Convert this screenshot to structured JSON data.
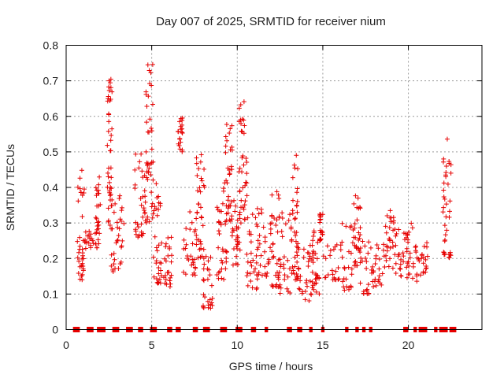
{
  "chart_data": {
    "type": "scatter",
    "title": "Day 007 of 2025, SRMTID for receiver nium",
    "xlabel": "GPS time / hours",
    "ylabel": "SRMTID / TECUs",
    "xlim": [
      0,
      24.3
    ],
    "ylim": [
      0,
      0.8
    ],
    "xticks": [
      0,
      5,
      10,
      15,
      20
    ],
    "xtick_labels": [
      "0",
      "5",
      "10",
      "15",
      "20"
    ],
    "yticks": [
      0,
      0.1,
      0.2,
      0.3,
      0.4,
      0.5,
      0.6,
      0.7,
      0.8
    ],
    "ytick_labels": [
      "0",
      "0.1",
      "0.2",
      "0.3",
      "0.4",
      "0.5",
      "0.6",
      "0.7",
      "0.8"
    ],
    "grid": true,
    "marker": "+",
    "color": "#e60000",
    "clusters": [
      {
        "x": [
          0.6,
          1.1
        ],
        "y": [
          0.14,
          0.45
        ]
      },
      {
        "x": [
          1.1,
          1.6
        ],
        "y": [
          0.22,
          0.28
        ]
      },
      {
        "x": [
          1.7,
          2.0
        ],
        "y": [
          0.23,
          0.43
        ]
      },
      {
        "x": [
          2.4,
          2.7
        ],
        "y": [
          0.28,
          0.71
        ]
      },
      {
        "x": [
          2.6,
          3.4
        ],
        "y": [
          0.16,
          0.4
        ]
      },
      {
        "x": [
          4.0,
          4.6
        ],
        "y": [
          0.26,
          0.5
        ]
      },
      {
        "x": [
          4.6,
          5.1
        ],
        "y": [
          0.3,
          0.77
        ]
      },
      {
        "x": [
          5.1,
          5.6
        ],
        "y": [
          0.13,
          0.42
        ]
      },
      {
        "x": [
          5.7,
          6.2
        ],
        "y": [
          0.12,
          0.26
        ]
      },
      {
        "x": [
          6.5,
          6.8
        ],
        "y": [
          0.5,
          0.6
        ]
      },
      {
        "x": [
          6.8,
          7.6
        ],
        "y": [
          0.15,
          0.34
        ]
      },
      {
        "x": [
          7.6,
          8.1
        ],
        "y": [
          0.2,
          0.52
        ]
      },
      {
        "x": [
          8.0,
          8.6
        ],
        "y": [
          0.06,
          0.23
        ]
      },
      {
        "x": [
          8.8,
          9.4
        ],
        "y": [
          0.14,
          0.43
        ]
      },
      {
        "x": [
          9.3,
          9.7
        ],
        "y": [
          0.3,
          0.59
        ]
      },
      {
        "x": [
          9.7,
          10.2
        ],
        "y": [
          0.18,
          0.37
        ]
      },
      {
        "x": [
          10.1,
          10.6
        ],
        "y": [
          0.3,
          0.66
        ]
      },
      {
        "x": [
          10.5,
          11.2
        ],
        "y": [
          0.11,
          0.36
        ]
      },
      {
        "x": [
          11.2,
          12.0
        ],
        "y": [
          0.15,
          0.35
        ]
      },
      {
        "x": [
          12.0,
          12.5
        ],
        "y": [
          0.12,
          0.4
        ]
      },
      {
        "x": [
          12.4,
          13.2
        ],
        "y": [
          0.1,
          0.33
        ]
      },
      {
        "x": [
          13.2,
          13.6
        ],
        "y": [
          0.14,
          0.51
        ]
      },
      {
        "x": [
          13.6,
          14.4
        ],
        "y": [
          0.08,
          0.26
        ]
      },
      {
        "x": [
          14.3,
          14.8
        ],
        "y": [
          0.1,
          0.3
        ]
      },
      {
        "x": [
          14.8,
          15.0
        ],
        "y": [
          0.25,
          0.34
        ]
      },
      {
        "x": [
          15.0,
          16.0
        ],
        "y": [
          0.14,
          0.24
        ]
      },
      {
        "x": [
          16.0,
          16.8
        ],
        "y": [
          0.11,
          0.3
        ]
      },
      {
        "x": [
          16.8,
          17.2
        ],
        "y": [
          0.18,
          0.39
        ]
      },
      {
        "x": [
          17.1,
          17.9
        ],
        "y": [
          0.1,
          0.26
        ]
      },
      {
        "x": [
          17.9,
          18.6
        ],
        "y": [
          0.11,
          0.25
        ]
      },
      {
        "x": [
          18.6,
          19.2
        ],
        "y": [
          0.17,
          0.35
        ]
      },
      {
        "x": [
          19.2,
          19.9
        ],
        "y": [
          0.15,
          0.31
        ]
      },
      {
        "x": [
          19.9,
          20.5
        ],
        "y": [
          0.13,
          0.3
        ]
      },
      {
        "x": [
          20.5,
          21.2
        ],
        "y": [
          0.15,
          0.25
        ]
      },
      {
        "x": [
          22.0,
          22.5
        ],
        "y": [
          0.2,
          0.54
        ]
      }
    ],
    "zero_intervals": [
      [
        0.4,
        0.8
      ],
      [
        1.2,
        1.6
      ],
      [
        1.8,
        2.3
      ],
      [
        2.7,
        3.1
      ],
      [
        3.5,
        3.9
      ],
      [
        4.2,
        4.5
      ],
      [
        4.9,
        5.3
      ],
      [
        5.9,
        6.2
      ],
      [
        6.4,
        6.7
      ],
      [
        7.4,
        7.7
      ],
      [
        8.0,
        8.4
      ],
      [
        9.0,
        9.4
      ],
      [
        9.9,
        10.3
      ],
      [
        10.8,
        11.1
      ],
      [
        11.6,
        11.8
      ],
      [
        12.9,
        13.2
      ],
      [
        13.5,
        13.8
      ],
      [
        14.2,
        14.4
      ],
      [
        14.9,
        15.1
      ],
      [
        16.3,
        16.5
      ],
      [
        16.9,
        17.1
      ],
      [
        17.3,
        17.5
      ],
      [
        17.7,
        17.9
      ],
      [
        19.7,
        20.0
      ],
      [
        20.3,
        20.5
      ],
      [
        20.6,
        21.1
      ],
      [
        21.5,
        21.7
      ],
      [
        21.8,
        22.3
      ],
      [
        22.4,
        22.8
      ]
    ]
  }
}
